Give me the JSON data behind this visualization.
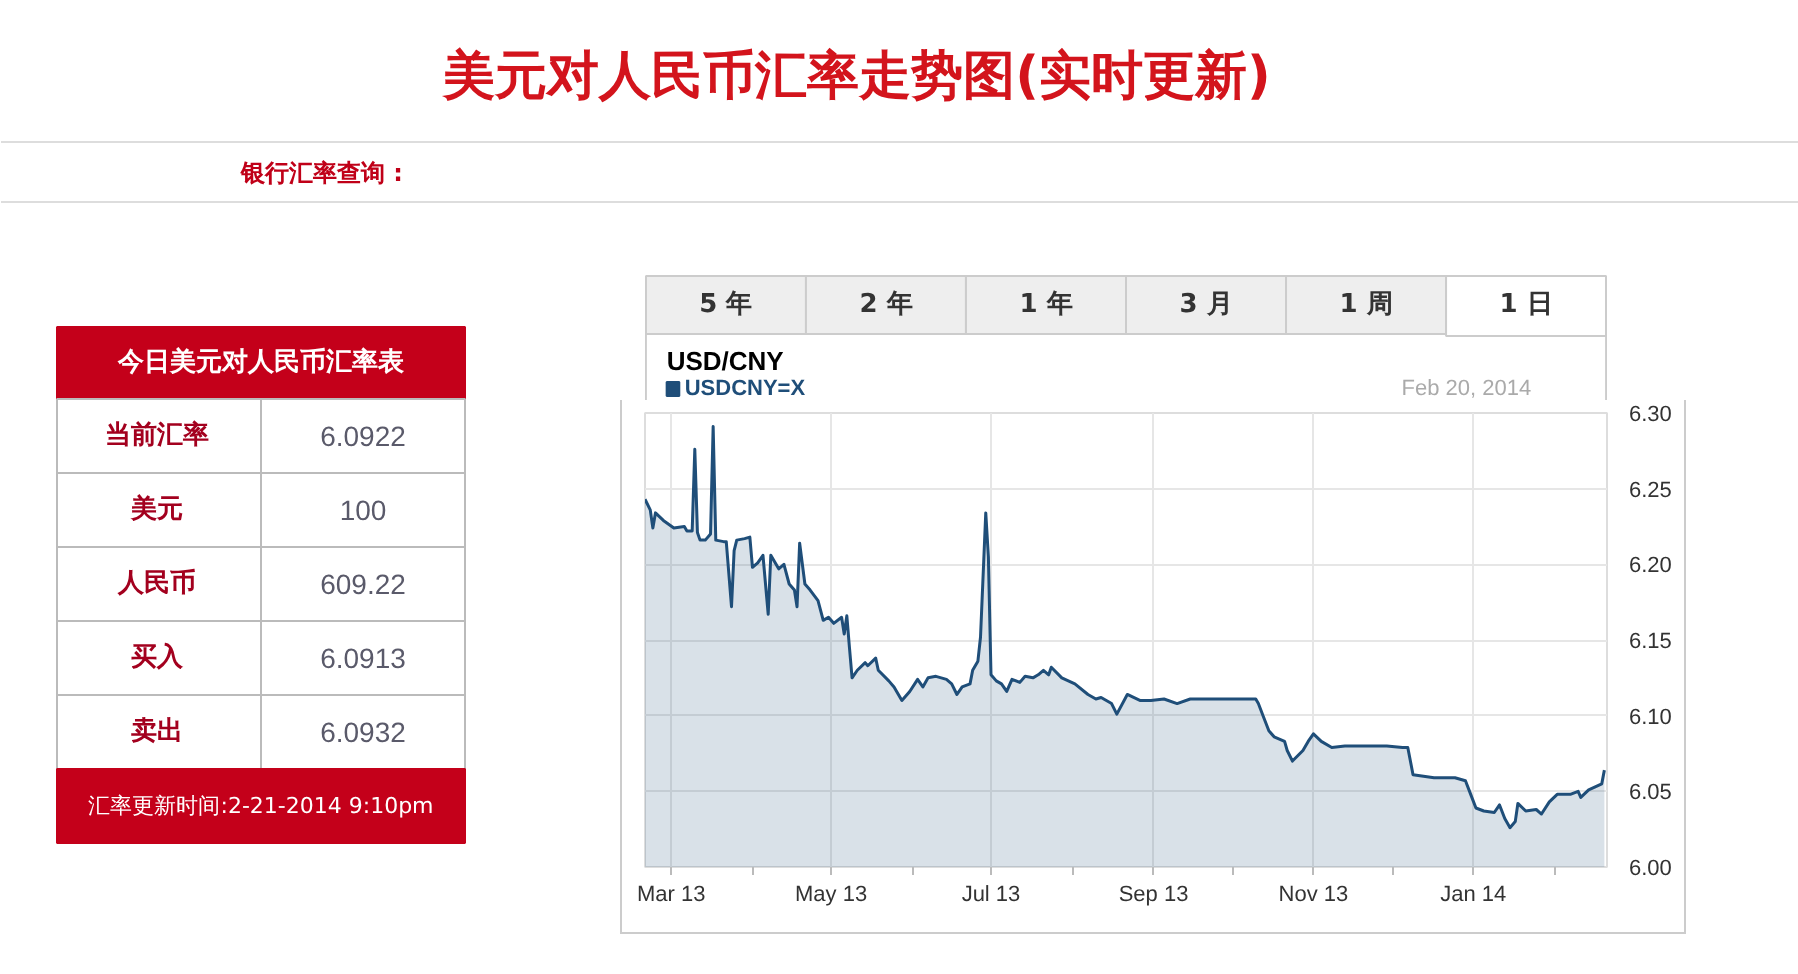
{
  "chart_data": [
    {
      "type": "other",
      "title": "美元对人民币汇率走势图(实时更新)",
      "annotations": [
        "银行汇率查询 :"
      ]
    },
    {
      "type": "other",
      "title": "今日美元对人民币汇率表",
      "categories": [
        "当前汇率",
        "美元",
        "人民币",
        "买入",
        "卖出"
      ],
      "values": [
        6.0922,
        100,
        609.22,
        6.0913,
        6.0932
      ],
      "data_labels": true,
      "annotations": [
        "汇率更新时间:2-21-2014 9:10pm"
      ]
    },
    {
      "type": "area",
      "title": "USD/CNY",
      "annotations": [
        "Feb 20, 2014",
        "5 年",
        "2 年",
        "1 年",
        "3 月",
        "1 周",
        "1 日"
      ],
      "x": [
        "2013-02-19",
        "2013-02-21",
        "2013-02-22",
        "2013-02-23",
        "2013-02-26",
        "2013-03-02",
        "2013-03-06",
        "2013-03-07",
        "2013-03-09",
        "2013-03-10",
        "2013-03-11",
        "2013-03-12",
        "2013-03-14",
        "2013-03-16",
        "2013-03-17",
        "2013-03-18",
        "2013-03-21",
        "2013-03-22",
        "2013-03-24",
        "2013-03-25",
        "2013-03-26",
        "2013-03-29",
        "2013-03-31",
        "2013-04-01",
        "2013-04-03",
        "2013-04-05",
        "2013-04-07",
        "2013-04-08",
        "2013-04-09",
        "2013-04-11",
        "2013-04-13",
        "2013-04-15",
        "2013-04-17",
        "2013-04-18",
        "2013-04-19",
        "2013-04-21",
        "2013-04-23",
        "2013-04-26",
        "2013-04-28",
        "2013-04-30",
        "2013-05-02",
        "2013-05-05",
        "2013-05-06",
        "2013-05-07",
        "2013-05-08",
        "2013-05-09",
        "2013-05-11",
        "2013-05-14",
        "2013-05-15",
        "2013-05-18",
        "2013-05-19",
        "2013-05-23",
        "2013-05-25",
        "2013-05-28",
        "2013-05-31",
        "2013-06-03",
        "2013-06-05",
        "2013-06-07",
        "2013-06-10",
        "2013-06-14",
        "2013-06-16",
        "2013-06-18",
        "2013-06-20",
        "2013-06-23",
        "2013-06-24",
        "2013-06-26",
        "2013-06-27",
        "2013-06-29",
        "2013-06-30",
        "2013-07-01",
        "2013-07-03",
        "2013-07-05",
        "2013-07-07",
        "2013-07-09",
        "2013-07-12",
        "2013-07-14",
        "2013-07-17",
        "2013-07-19",
        "2013-07-21",
        "2013-07-23",
        "2013-07-24",
        "2013-07-28",
        "2013-08-02",
        "2013-08-07",
        "2013-08-10",
        "2013-08-12",
        "2013-08-16",
        "2013-08-18",
        "2013-08-22",
        "2013-08-27",
        "2013-08-31",
        "2013-09-05",
        "2013-09-10",
        "2013-09-15",
        "2013-09-25",
        "2013-10-03",
        "2013-10-10",
        "2013-10-11",
        "2013-10-13",
        "2013-10-15",
        "2013-10-17",
        "2013-10-21",
        "2013-10-22",
        "2013-10-24",
        "2013-10-28",
        "2013-10-30",
        "2013-11-01",
        "2013-11-04",
        "2013-11-08",
        "2013-11-13",
        "2013-11-21",
        "2013-11-29",
        "2013-12-05",
        "2013-12-07",
        "2013-12-09",
        "2013-12-17",
        "2013-12-25",
        "2013-12-29",
        "2013-12-31",
        "2014-01-02",
        "2014-01-05",
        "2014-01-09",
        "2014-01-11",
        "2014-01-13",
        "2014-01-15",
        "2014-01-17",
        "2014-01-18",
        "2014-01-21",
        "2014-01-25",
        "2014-01-27",
        "2014-01-30",
        "2014-02-02",
        "2014-02-07",
        "2014-02-10",
        "2014-02-11",
        "2014-02-14",
        "2014-02-19",
        "2014-02-20"
      ],
      "series": [
        {
          "name": "USDCNY=X",
          "color": "#1f4e79",
          "values": [
            6.243,
            6.236,
            6.224,
            6.234,
            6.229,
            6.224,
            6.225,
            6.222,
            6.222,
            6.276,
            6.221,
            6.216,
            6.216,
            6.22,
            6.291,
            6.216,
            6.215,
            6.215,
            6.172,
            6.209,
            6.216,
            6.217,
            6.218,
            6.198,
            6.201,
            6.206,
            6.167,
            6.206,
            6.203,
            6.197,
            6.2,
            6.187,
            6.183,
            6.172,
            6.214,
            6.187,
            6.183,
            6.176,
            6.163,
            6.165,
            6.161,
            6.165,
            6.154,
            6.166,
            6.145,
            6.125,
            6.13,
            6.135,
            6.133,
            6.138,
            6.13,
            6.123,
            6.119,
            6.11,
            6.116,
            6.124,
            6.119,
            6.125,
            6.126,
            6.124,
            6.121,
            6.114,
            6.119,
            6.121,
            6.13,
            6.136,
            6.152,
            6.234,
            6.205,
            6.127,
            6.123,
            6.121,
            6.116,
            6.124,
            6.122,
            6.126,
            6.125,
            6.127,
            6.13,
            6.127,
            6.132,
            6.125,
            6.121,
            6.114,
            6.111,
            6.112,
            6.108,
            6.101,
            6.114,
            6.11,
            6.11,
            6.111,
            6.108,
            6.111,
            6.111,
            6.111,
            6.111,
            6.108,
            6.099,
            6.09,
            6.086,
            6.083,
            6.077,
            6.07,
            6.077,
            6.083,
            6.088,
            6.083,
            6.079,
            6.08,
            6.08,
            6.08,
            6.079,
            6.079,
            6.061,
            6.059,
            6.059,
            6.057,
            6.048,
            6.039,
            6.037,
            6.036,
            6.041,
            6.032,
            6.026,
            6.03,
            6.042,
            6.037,
            6.038,
            6.035,
            6.043,
            6.048,
            6.048,
            6.05,
            6.046,
            6.051,
            6.055,
            6.064
          ]
        }
      ],
      "xlim": [
        "2013-02-19",
        "2014-02-21"
      ],
      "xticks": [
        {
          "value": "2013-03-01",
          "label": "Mar 13"
        },
        {
          "value": "2013-04-01",
          "label": null
        },
        {
          "value": "2013-05-01",
          "label": "May 13"
        },
        {
          "value": "2013-06-01",
          "label": null
        },
        {
          "value": "2013-07-01",
          "label": "Jul 13"
        },
        {
          "value": "2013-08-01",
          "label": null
        },
        {
          "value": "2013-09-01",
          "label": "Sep 13"
        },
        {
          "value": "2013-10-01",
          "label": null
        },
        {
          "value": "2013-11-01",
          "label": "Nov 13"
        },
        {
          "value": "2013-12-01",
          "label": null
        },
        {
          "value": "2014-01-01",
          "label": "Jan 14"
        },
        {
          "value": "2014-02-01",
          "label": null
        }
      ],
      "ylim": [
        6.0,
        6.3
      ],
      "yticks": [
        {
          "value": 6.0,
          "label": "6.00"
        },
        6.05,
        {
          "value": 6.1,
          "label": "6.10"
        },
        6.15,
        {
          "value": 6.2,
          "label": "6.20"
        },
        6.25,
        {
          "value": 6.3,
          "label": "6.30"
        }
      ],
      "grid": true,
      "legend": "top left"
    }
  ]
}
